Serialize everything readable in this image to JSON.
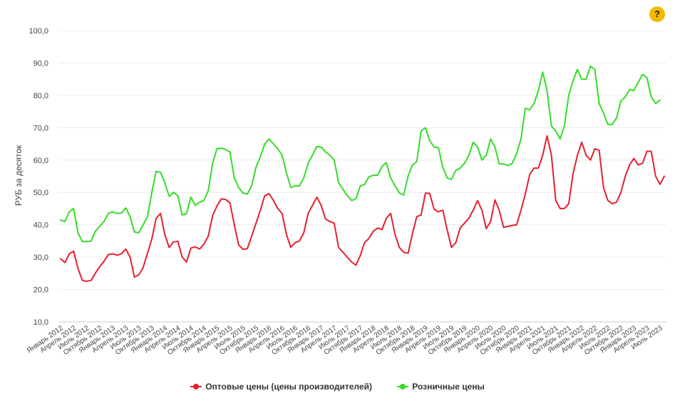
{
  "help_label": "?",
  "chart_data": {
    "type": "line",
    "title": "",
    "ylabel": "РУБ за десяток",
    "xlabel": "",
    "ylim": [
      10,
      100
    ],
    "yticks": [
      "10,0",
      "20,0",
      "30,0",
      "40,0",
      "50,0",
      "60,0",
      "70,0",
      "80,0",
      "90,0",
      "100,0"
    ],
    "grid": true,
    "legend_position": "bottom",
    "x_tick_labels": [
      "Январь 2012",
      "Апрель 2012",
      "Июль 2012",
      "Октябрь 2012",
      "Январь 2013",
      "Апрель 2013",
      "Июль 2013",
      "Октябрь 2013",
      "Январь 2014",
      "Апрель 2014",
      "Июль 2014",
      "Октябрь 2014",
      "Январь 2015",
      "Апрель 2015",
      "Июль 2015",
      "Октябрь 2015",
      "Январь 2016",
      "Апрель 2016",
      "Июль 2016",
      "Октябрь 2016",
      "Январь 2017",
      "Апрель 2017",
      "Июль 2017",
      "Октябрь 2017",
      "Январь 2018",
      "Апрель 2018",
      "Июль 2018",
      "Октябрь 2018",
      "Январь 2019",
      "Апрель 2019",
      "Июль 2019",
      "Октябрь 2019",
      "Январь 2020",
      "Апрель 2020",
      "Июль 2020",
      "Октябрь 2020",
      "Январь 2021",
      "Апрель 2021",
      "Июль 2021",
      "Октябрь 2021",
      "Январь 2022",
      "Апрель 2022",
      "Июль 2022",
      "Октябрь 2022",
      "Январь 2023",
      "Апрель 2023",
      "Июль 2023"
    ],
    "series": [
      {
        "name": "Оптовые цены (цены производителей)",
        "color": "#e5202b",
        "values": [
          29.5,
          28.3,
          31.0,
          31.8,
          26.5,
          22.8,
          22.5,
          22.8,
          25.0,
          27.0,
          28.7,
          30.8,
          31.0,
          30.6,
          31.0,
          32.5,
          30.0,
          23.8,
          24.5,
          26.8,
          31.2,
          35.6,
          42.0,
          43.5,
          37.0,
          33.0,
          34.7,
          34.9,
          30.0,
          28.5,
          32.8,
          33.2,
          32.5,
          34.0,
          36.5,
          42.8,
          45.8,
          48.0,
          47.8,
          46.8,
          40.0,
          33.8,
          32.4,
          32.6,
          36.5,
          40.5,
          44.5,
          49.0,
          49.6,
          47.5,
          45.0,
          43.5,
          37.0,
          33.0,
          34.5,
          35.0,
          37.5,
          43.5,
          46.0,
          48.5,
          46.0,
          41.8,
          41.0,
          40.5,
          33.0,
          31.5,
          30.0,
          28.5,
          27.5,
          30.5,
          34.5,
          35.8,
          38.0,
          39.0,
          38.5,
          42.0,
          43.5,
          37.0,
          33.0,
          31.5,
          31.2,
          37.2,
          42.5,
          43.0,
          49.8,
          49.7,
          44.8,
          44.0,
          44.5,
          38.5,
          33.0,
          34.5,
          39.0,
          40.5,
          42.0,
          44.5,
          47.5,
          44.5,
          38.8,
          41.0,
          47.7,
          44.5,
          39.2,
          39.5,
          39.8,
          40.0,
          44.5,
          49.5,
          55.5,
          57.5,
          57.5,
          61.5,
          67.5,
          61.5,
          47.5,
          45.0,
          45.0,
          46.5,
          55.8,
          61.5,
          65.5,
          61.5,
          60.0,
          63.5,
          63.0,
          51.5,
          47.5,
          46.5,
          47.0,
          50.0,
          55.0,
          58.5,
          60.5,
          58.5,
          59.0,
          62.7,
          62.7,
          55.0,
          52.5,
          55.0
        ]
      },
      {
        "name": "Розничные цены",
        "color": "#33dd25",
        "values": [
          41.5,
          41.0,
          44.0,
          45.0,
          37.5,
          34.8,
          34.8,
          34.9,
          38.0,
          39.5,
          41.0,
          43.5,
          44.0,
          43.5,
          43.6,
          45.2,
          42.5,
          37.8,
          37.5,
          40.0,
          42.5,
          50.0,
          56.5,
          56.2,
          53.0,
          48.8,
          50.0,
          49.0,
          43.0,
          43.5,
          48.5,
          46.0,
          47.0,
          47.5,
          50.5,
          59.0,
          63.5,
          63.7,
          63.3,
          62.5,
          54.5,
          51.5,
          49.8,
          49.5,
          52.0,
          57.8,
          61.0,
          65.0,
          66.5,
          65.0,
          63.5,
          61.5,
          56.0,
          51.5,
          52.0,
          52.0,
          54.5,
          59.0,
          61.5,
          64.2,
          64.0,
          62.5,
          61.5,
          60.0,
          53.0,
          51.0,
          49.0,
          47.5,
          48.0,
          52.0,
          52.5,
          54.8,
          55.3,
          55.3,
          58.0,
          59.2,
          54.5,
          52.0,
          49.8,
          49.2,
          55.0,
          58.5,
          59.5,
          69.0,
          70.0,
          66.0,
          64.0,
          63.8,
          57.8,
          54.5,
          54.0,
          56.8,
          57.5,
          59.0,
          61.5,
          65.5,
          64.0,
          60.0,
          61.5,
          66.5,
          64.0,
          58.8,
          58.8,
          58.3,
          59.0,
          62.0,
          66.5,
          76.0,
          75.5,
          77.5,
          81.5,
          87.2,
          81.5,
          70.5,
          69.0,
          66.5,
          70.5,
          80.0,
          84.5,
          88.0,
          85.0,
          85.0,
          89.0,
          88.0,
          77.5,
          74.5,
          71.0,
          71.0,
          73.0,
          78.3,
          79.5,
          81.8,
          81.5,
          84.0,
          86.5,
          85.5,
          79.5,
          77.5,
          78.5
        ]
      }
    ]
  }
}
